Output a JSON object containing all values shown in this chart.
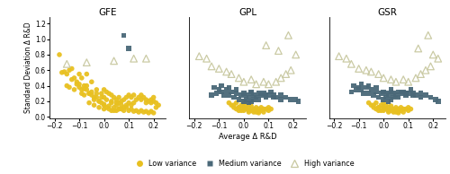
{
  "titles": [
    "GFE",
    "GPL",
    "GSR"
  ],
  "xlabel": "Average Δ R&D",
  "ylabel": "Standard Deviation Δ R&D",
  "xlim": [
    -0.22,
    0.25
  ],
  "ylim": [
    -0.02,
    1.28
  ],
  "xticks": [
    -0.2,
    -0.1,
    0,
    0.1,
    0.2
  ],
  "yticks": [
    0,
    0.2,
    0.4,
    0.6,
    0.8,
    1.0,
    1.2
  ],
  "low_color": "#E8C020",
  "med_color": "#4A6878",
  "high_color": "#C8C8A0",
  "legend_labels": [
    "Low variance",
    "Medium variance",
    "High variance"
  ],
  "GFE": {
    "low": {
      "x": [
        -0.18,
        -0.17,
        -0.16,
        -0.15,
        -0.14,
        -0.13,
        -0.12,
        -0.11,
        -0.1,
        -0.1,
        -0.09,
        -0.09,
        -0.08,
        -0.08,
        -0.07,
        -0.07,
        -0.06,
        -0.06,
        -0.05,
        -0.05,
        -0.04,
        -0.04,
        -0.03,
        -0.03,
        -0.02,
        -0.02,
        -0.01,
        -0.01,
        0.0,
        0.0,
        0.0,
        0.0,
        0.01,
        0.01,
        0.02,
        0.02,
        0.03,
        0.03,
        0.03,
        0.04,
        0.04,
        0.05,
        0.05,
        0.05,
        0.06,
        0.06,
        0.06,
        0.07,
        0.07,
        0.08,
        0.08,
        0.09,
        0.09,
        0.1,
        0.1,
        0.11,
        0.11,
        0.12,
        0.12,
        0.13,
        0.14,
        0.15,
        0.15,
        0.16,
        0.17,
        0.17,
        0.18,
        0.19,
        0.19,
        0.2,
        0.2,
        0.21,
        0.21,
        0.22,
        -0.15,
        -0.13,
        -0.11,
        -0.09,
        -0.07,
        -0.05,
        -0.03,
        -0.01,
        0.01,
        0.03,
        0.05,
        0.07,
        0.09,
        0.11,
        0.13,
        0.15,
        0.17,
        0.19,
        -0.14,
        -0.12,
        -0.1,
        -0.08,
        -0.06,
        -0.04,
        -0.02,
        0.0,
        0.02,
        0.04,
        0.06,
        0.08,
        0.1,
        0.12,
        0.14,
        0.16,
        0.18,
        0.2
      ],
      "y": [
        0.8,
        0.57,
        0.58,
        0.4,
        0.38,
        0.62,
        0.35,
        0.42,
        0.55,
        0.38,
        0.5,
        0.3,
        0.4,
        0.28,
        0.55,
        0.35,
        0.3,
        0.18,
        0.45,
        0.28,
        0.22,
        0.15,
        0.35,
        0.25,
        0.2,
        0.12,
        0.3,
        0.18,
        0.35,
        0.25,
        0.15,
        0.1,
        0.32,
        0.12,
        0.3,
        0.1,
        0.28,
        0.18,
        0.08,
        0.25,
        0.08,
        0.22,
        0.15,
        0.08,
        0.25,
        0.18,
        0.1,
        0.2,
        0.1,
        0.22,
        0.12,
        0.25,
        0.15,
        0.28,
        0.18,
        0.25,
        0.15,
        0.28,
        0.18,
        0.22,
        0.25,
        0.28,
        0.22,
        0.25,
        0.22,
        0.18,
        0.2,
        0.22,
        0.18,
        0.25,
        0.2,
        0.18,
        0.12,
        0.15,
        0.55,
        0.48,
        0.45,
        0.35,
        0.4,
        0.32,
        0.3,
        0.25,
        0.22,
        0.2,
        0.18,
        0.15,
        0.12,
        0.1,
        0.08,
        0.08,
        0.07,
        0.07,
        0.6,
        0.5,
        0.42,
        0.36,
        0.3,
        0.25,
        0.2,
        0.16,
        0.14,
        0.12,
        0.1,
        0.08,
        0.08,
        0.07,
        0.06,
        0.06,
        0.05,
        0.05
      ]
    },
    "med": {
      "x": [
        0.08,
        0.1
      ],
      "y": [
        1.05,
        0.88
      ]
    },
    "high": {
      "x": [
        -0.15,
        -0.07,
        0.04,
        0.12,
        0.17
      ],
      "y": [
        0.68,
        0.7,
        0.72,
        0.75,
        0.75
      ]
    }
  },
  "GPL": {
    "low": {
      "x": [
        -0.05,
        -0.04,
        -0.03,
        -0.03,
        -0.02,
        -0.02,
        -0.01,
        -0.01,
        0.0,
        0.0,
        0.0,
        0.01,
        0.01,
        0.02,
        0.02,
        0.03,
        0.03,
        0.04,
        0.04,
        0.05,
        0.05,
        0.06,
        0.06,
        0.07,
        0.07,
        0.08,
        0.09,
        0.1,
        0.1,
        0.11,
        -0.06,
        -0.04,
        -0.02,
        0.0,
        0.02,
        0.04,
        0.06,
        0.08
      ],
      "y": [
        0.15,
        0.12,
        0.18,
        0.1,
        0.12,
        0.08,
        0.15,
        0.08,
        0.12,
        0.18,
        0.08,
        0.1,
        0.15,
        0.06,
        0.12,
        0.08,
        0.14,
        0.06,
        0.1,
        0.06,
        0.12,
        0.05,
        0.1,
        0.08,
        0.12,
        0.1,
        0.1,
        0.12,
        0.08,
        0.1,
        0.18,
        0.15,
        0.12,
        0.1,
        0.08,
        0.08,
        0.07,
        0.06
      ]
    },
    "med": {
      "x": [
        -0.13,
        -0.12,
        -0.11,
        -0.1,
        -0.09,
        -0.08,
        -0.07,
        -0.06,
        -0.05,
        -0.04,
        -0.03,
        -0.02,
        -0.01,
        0.0,
        0.0,
        0.01,
        0.01,
        0.02,
        0.02,
        0.03,
        0.03,
        0.04,
        0.04,
        0.05,
        0.06,
        0.07,
        0.08,
        0.09,
        0.1,
        0.11,
        0.12,
        0.13,
        0.15,
        0.17,
        0.19,
        0.21,
        0.22,
        -0.09,
        -0.06,
        -0.03,
        0.03,
        0.06,
        0.09,
        0.12,
        0.15
      ],
      "y": [
        0.28,
        0.38,
        0.3,
        0.35,
        0.32,
        0.28,
        0.35,
        0.28,
        0.32,
        0.25,
        0.3,
        0.22,
        0.28,
        0.2,
        0.3,
        0.22,
        0.28,
        0.18,
        0.25,
        0.2,
        0.3,
        0.22,
        0.28,
        0.25,
        0.22,
        0.28,
        0.3,
        0.25,
        0.28,
        0.32,
        0.28,
        0.25,
        0.28,
        0.25,
        0.22,
        0.22,
        0.2,
        0.4,
        0.38,
        0.35,
        0.32,
        0.3,
        0.28,
        0.25,
        0.22
      ]
    },
    "high": {
      "x": [
        -0.18,
        -0.15,
        -0.13,
        -0.1,
        -0.07,
        -0.05,
        -0.02,
        0.0,
        0.03,
        0.05,
        0.08,
        0.1,
        0.13,
        0.15,
        0.17,
        0.19,
        0.21,
        0.09,
        0.14,
        0.18
      ],
      "y": [
        0.78,
        0.75,
        0.65,
        0.62,
        0.58,
        0.55,
        0.5,
        0.45,
        0.48,
        0.42,
        0.45,
        0.42,
        0.45,
        0.5,
        0.55,
        0.6,
        0.8,
        0.92,
        0.85,
        1.05
      ]
    }
  },
  "GSR": {
    "low": {
      "x": [
        -0.05,
        -0.04,
        -0.03,
        -0.03,
        -0.02,
        -0.02,
        -0.01,
        -0.01,
        0.0,
        0.0,
        0.0,
        0.01,
        0.01,
        0.02,
        0.02,
        0.03,
        0.03,
        0.04,
        0.04,
        0.05,
        0.05,
        0.06,
        0.06,
        0.07,
        0.07,
        0.08,
        0.09,
        0.1,
        0.1,
        0.11,
        -0.06,
        -0.04,
        -0.02,
        0.0,
        0.02,
        0.04,
        0.06,
        0.08
      ],
      "y": [
        0.15,
        0.12,
        0.18,
        0.1,
        0.12,
        0.08,
        0.15,
        0.08,
        0.12,
        0.18,
        0.08,
        0.1,
        0.15,
        0.06,
        0.12,
        0.08,
        0.14,
        0.06,
        0.1,
        0.06,
        0.12,
        0.05,
        0.1,
        0.08,
        0.12,
        0.1,
        0.1,
        0.12,
        0.08,
        0.1,
        0.18,
        0.15,
        0.12,
        0.1,
        0.08,
        0.08,
        0.07,
        0.06
      ]
    },
    "med": {
      "x": [
        -0.13,
        -0.12,
        -0.11,
        -0.1,
        -0.09,
        -0.08,
        -0.07,
        -0.06,
        -0.05,
        -0.04,
        -0.03,
        -0.02,
        -0.01,
        0.0,
        0.0,
        0.01,
        0.01,
        0.02,
        0.02,
        0.03,
        0.03,
        0.04,
        0.04,
        0.05,
        0.06,
        0.07,
        0.08,
        0.09,
        0.1,
        0.11,
        0.12,
        0.13,
        0.15,
        0.17,
        0.19,
        0.21,
        0.22,
        -0.09,
        -0.06,
        -0.03,
        0.03,
        0.06,
        0.09,
        0.12,
        0.15
      ],
      "y": [
        0.32,
        0.4,
        0.35,
        0.38,
        0.35,
        0.3,
        0.38,
        0.3,
        0.35,
        0.28,
        0.32,
        0.25,
        0.3,
        0.22,
        0.32,
        0.25,
        0.3,
        0.2,
        0.28,
        0.22,
        0.32,
        0.25,
        0.3,
        0.28,
        0.25,
        0.3,
        0.32,
        0.28,
        0.3,
        0.35,
        0.3,
        0.28,
        0.3,
        0.28,
        0.25,
        0.22,
        0.2,
        0.42,
        0.4,
        0.38,
        0.35,
        0.32,
        0.3,
        0.28,
        0.25
      ]
    },
    "high": {
      "x": [
        -0.18,
        -0.15,
        -0.13,
        -0.1,
        -0.07,
        -0.05,
        -0.02,
        0.0,
        0.03,
        0.05,
        0.08,
        0.1,
        0.13,
        0.15,
        0.17,
        0.19,
        0.22,
        0.14,
        0.18,
        0.2
      ],
      "y": [
        0.78,
        0.75,
        0.68,
        0.62,
        0.6,
        0.58,
        0.55,
        0.5,
        0.48,
        0.45,
        0.48,
        0.45,
        0.5,
        0.55,
        0.6,
        0.65,
        0.75,
        0.88,
        1.05,
        0.8
      ]
    }
  }
}
